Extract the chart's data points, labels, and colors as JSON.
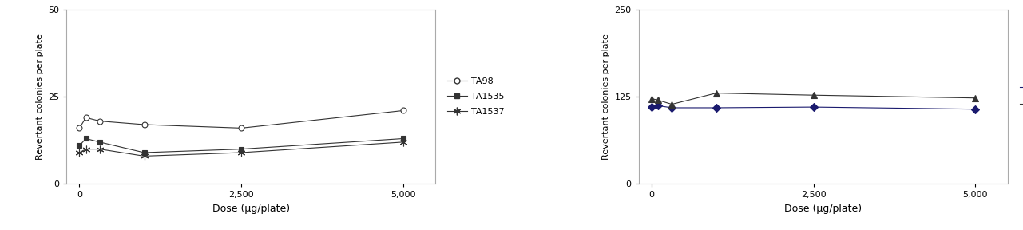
{
  "chart1": {
    "x": [
      0,
      100,
      313,
      1000,
      2500,
      5000
    ],
    "TA98": [
      16,
      19,
      18,
      17,
      16,
      21
    ],
    "TA1535": [
      11,
      13,
      12,
      9,
      10,
      13
    ],
    "TA1537": [
      9,
      10,
      10,
      8,
      9,
      12
    ],
    "ylabel": "Revertant colonies per plate",
    "xlabel": "Dose (μg/plate)",
    "ylim": [
      0,
      50
    ],
    "yticks": [
      0,
      25,
      50
    ],
    "xticks": [
      0,
      2500,
      5000
    ],
    "xtick_labels": [
      "0",
      "2,500",
      "5,000"
    ]
  },
  "chart2": {
    "x": [
      0,
      100,
      313,
      1000,
      2500,
      5000
    ],
    "TA100": [
      110,
      112,
      109,
      109,
      110,
      107
    ],
    "WP2": [
      122,
      120,
      114,
      130,
      127,
      123
    ],
    "ylabel": "Revertant colonies per plate",
    "xlabel": "Dose (μg/plate)",
    "ylim": [
      0,
      250
    ],
    "yticks": [
      0,
      125,
      250
    ],
    "xticks": [
      0,
      2500,
      5000
    ],
    "xtick_labels": [
      "0",
      "2,500",
      "5,000"
    ]
  },
  "line_color_dark": "#333333",
  "line_color_blue": "#1a1a6e",
  "background": "#ffffff"
}
